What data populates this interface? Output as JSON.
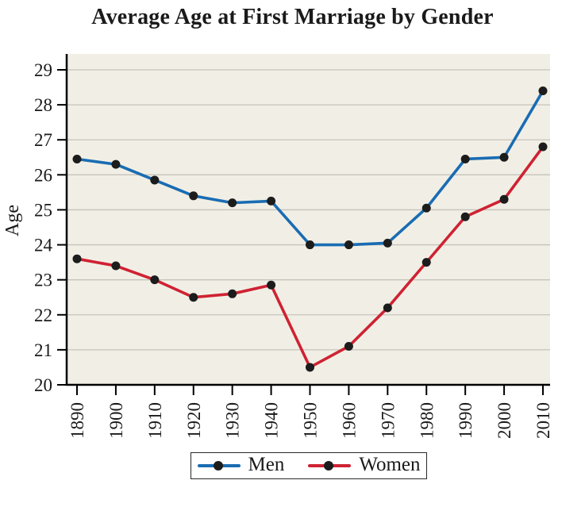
{
  "chart_data": {
    "type": "line",
    "title": "Average Age at First Marriage by Gender",
    "xlabel": "",
    "ylabel": "Age",
    "categories": [
      "1890",
      "1900",
      "1910",
      "1920",
      "1930",
      "1940",
      "1950",
      "1960",
      "1970",
      "1980",
      "1990",
      "2000",
      "2010"
    ],
    "series": [
      {
        "name": "Men",
        "color": "#1a6cb3",
        "values": [
          26.45,
          26.3,
          25.85,
          25.4,
          25.2,
          25.25,
          24.0,
          24.0,
          24.05,
          25.05,
          26.45,
          26.5,
          28.4
        ]
      },
      {
        "name": "Women",
        "color": "#cf2233",
        "values": [
          23.6,
          23.4,
          23.0,
          22.5,
          22.6,
          22.85,
          20.5,
          21.1,
          22.2,
          23.5,
          24.8,
          25.3,
          26.8
        ]
      }
    ],
    "ylim": [
      20,
      29
    ],
    "y_ticks": [
      20,
      21,
      22,
      23,
      24,
      25,
      26,
      27,
      28,
      29
    ],
    "grid": true,
    "legend_position": "bottom",
    "marker_color": "#1c1c1c",
    "axis_color": "#000000",
    "plot_bg": "#f1efe5",
    "gridline_color": "#c6c4ba",
    "text_color": "#1a1a1a"
  }
}
